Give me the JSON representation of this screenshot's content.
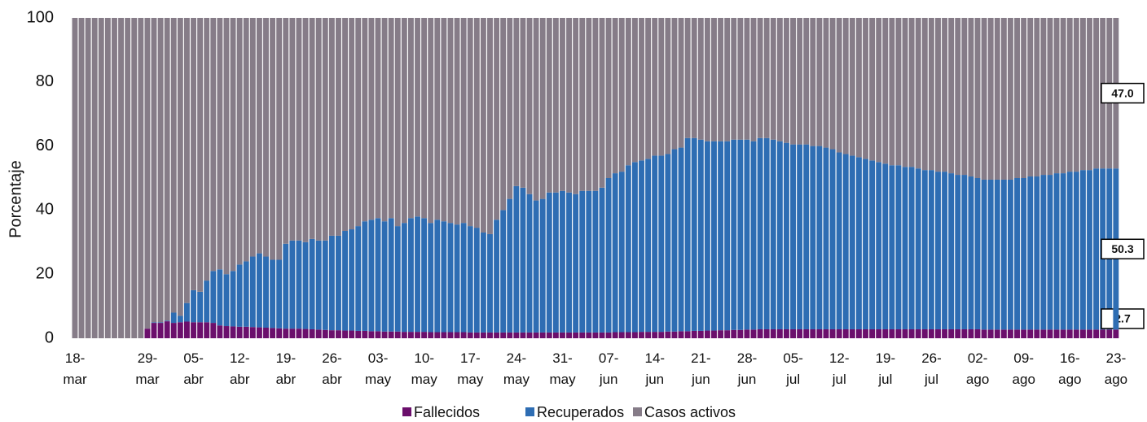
{
  "chart_data": {
    "type": "stacked_bar",
    "y_label": "Porcentaje",
    "ylim": [
      0,
      100
    ],
    "yticks": [
      0,
      20,
      40,
      60,
      80,
      100
    ],
    "legend": "bottom",
    "categories": [
      "18-mar",
      null,
      null,
      null,
      null,
      null,
      null,
      null,
      null,
      null,
      null,
      "29-mar",
      null,
      null,
      null,
      null,
      null,
      null,
      "05-abr",
      null,
      null,
      null,
      null,
      null,
      null,
      "12-abr",
      null,
      null,
      null,
      null,
      null,
      null,
      "19-abr",
      null,
      null,
      null,
      null,
      null,
      null,
      "26-abr",
      null,
      null,
      null,
      null,
      null,
      null,
      "03-may",
      null,
      null,
      null,
      null,
      null,
      null,
      "10-may",
      null,
      null,
      null,
      null,
      null,
      null,
      "17-may",
      null,
      null,
      null,
      null,
      null,
      null,
      "24-may",
      null,
      null,
      null,
      null,
      null,
      null,
      "31-may",
      null,
      null,
      null,
      null,
      null,
      null,
      "07-jun",
      null,
      null,
      null,
      null,
      null,
      null,
      "14-jun",
      null,
      null,
      null,
      null,
      null,
      null,
      "21-jun",
      null,
      null,
      null,
      null,
      null,
      null,
      "28-jun",
      null,
      null,
      null,
      null,
      null,
      null,
      "05-jul",
      null,
      null,
      null,
      null,
      null,
      null,
      "12-jul",
      null,
      null,
      null,
      null,
      null,
      null,
      "19-jul",
      null,
      null,
      null,
      null,
      null,
      null,
      "26-jul",
      null,
      null,
      null,
      null,
      null,
      null,
      "02-ago",
      null,
      null,
      null,
      null,
      null,
      null,
      "09-ago",
      null,
      null,
      null,
      null,
      null,
      null,
      "16-ago",
      null,
      null,
      null,
      null,
      null,
      null,
      "23-ago"
    ],
    "series": [
      {
        "name": "Fallecidos",
        "color": "#6b0f6c",
        "values": [
          0,
          0,
          0,
          0,
          0,
          0,
          0,
          0,
          0,
          0,
          0,
          3,
          4.8,
          4.8,
          5.3,
          4.8,
          5,
          5.2,
          5,
          5,
          5,
          4.8,
          4,
          3.8,
          3.7,
          3.6,
          3.6,
          3.5,
          3.4,
          3.3,
          3.2,
          3.1,
          3,
          3,
          3,
          2.9,
          2.8,
          2.7,
          2.6,
          2.5,
          2.5,
          2.4,
          2.4,
          2.3,
          2.3,
          2.2,
          2.2,
          2.1,
          2.1,
          2.1,
          2,
          2,
          2,
          2,
          1.9,
          1.9,
          1.9,
          1.9,
          1.9,
          1.9,
          1.8,
          1.8,
          1.8,
          1.8,
          1.8,
          1.8,
          1.8,
          1.8,
          1.8,
          1.8,
          1.8,
          1.8,
          1.8,
          1.8,
          1.8,
          1.8,
          1.8,
          1.8,
          1.8,
          1.8,
          1.8,
          1.8,
          1.9,
          1.9,
          1.9,
          1.9,
          2,
          2,
          2,
          2,
          2.1,
          2.1,
          2.2,
          2.2,
          2.3,
          2.3,
          2.4,
          2.4,
          2.5,
          2.5,
          2.6,
          2.6,
          2.7,
          2.7,
          2.8,
          2.8,
          2.8,
          2.8,
          2.8,
          2.8,
          2.8,
          2.8,
          2.8,
          2.8,
          2.8,
          2.8,
          2.8,
          2.8,
          2.8,
          2.8,
          2.8,
          2.8,
          2.8,
          2.8,
          2.8,
          2.8,
          2.8,
          2.8,
          2.8,
          2.8,
          2.8,
          2.8,
          2.8,
          2.8,
          2.8,
          2.8,
          2.8,
          2.8,
          2.7,
          2.7,
          2.7,
          2.7,
          2.7,
          2.7,
          2.7,
          2.7,
          2.7,
          2.7,
          2.7,
          2.7,
          2.7,
          2.7,
          2.7,
          2.7,
          2.7,
          2.7,
          2.7,
          2.7,
          2.7
        ],
        "value_labels": {
          "158": "2.7"
        }
      },
      {
        "name": "Recuperados",
        "color": "#2e6db3",
        "values": [
          0,
          0,
          0,
          0,
          0,
          0,
          0,
          0,
          0,
          0,
          0,
          0,
          0.2,
          0.2,
          0.2,
          3.2,
          2,
          5.8,
          10,
          9.5,
          13,
          16.2,
          17.5,
          16.2,
          17.3,
          19.4,
          20.4,
          22,
          23.1,
          22.2,
          21.3,
          21.4,
          26.5,
          27.5,
          27.5,
          27.1,
          28.2,
          27.8,
          27.9,
          29.5,
          29.5,
          31.1,
          31.6,
          32.7,
          34.2,
          34.8,
          35.3,
          34.4,
          35.4,
          32.9,
          34,
          35.5,
          36,
          35.5,
          34.1,
          35.1,
          34.6,
          34.1,
          33.6,
          34.1,
          33.2,
          32.7,
          31.2,
          30.7,
          35.2,
          38.2,
          41.7,
          45.7,
          45.2,
          43.2,
          41.2,
          41.7,
          43.7,
          43.7,
          44.2,
          43.7,
          43.2,
          44.2,
          44.2,
          44.2,
          45.2,
          48.2,
          49.6,
          50.1,
          52.1,
          53.1,
          53.5,
          54,
          55,
          55,
          55.4,
          56.9,
          57.3,
          60.3,
          60.2,
          59.7,
          59.1,
          59.1,
          59,
          59,
          59.4,
          59.4,
          59.3,
          58.8,
          59.7,
          59.7,
          59.2,
          58.7,
          58.2,
          57.7,
          57.7,
          57.7,
          57.2,
          57.2,
          56.7,
          56.2,
          55.2,
          54.7,
          54.2,
          53.7,
          53.2,
          52.7,
          52.2,
          51.7,
          51.2,
          51.2,
          50.7,
          50.7,
          50.2,
          49.7,
          49.7,
          49.2,
          49.2,
          48.7,
          48.2,
          48.2,
          47.7,
          47.2,
          46.8,
          46.8,
          46.8,
          46.8,
          46.8,
          47.3,
          47.3,
          47.8,
          47.8,
          48.3,
          48.3,
          48.8,
          48.8,
          49.3,
          49.3,
          49.8,
          49.8,
          50.3,
          50.3,
          50.3,
          50.3
        ],
        "value_labels": {
          "158": "50.3"
        }
      },
      {
        "name": "Casos activos",
        "color": "#867c88",
        "values": [
          100,
          100,
          100,
          100,
          100,
          100,
          100,
          100,
          100,
          100,
          100,
          97,
          95,
          95,
          94.5,
          92,
          93,
          89,
          85,
          85.5,
          82,
          79,
          78.5,
          80,
          79,
          77,
          76,
          74.5,
          73.5,
          74.5,
          75.5,
          75.5,
          70.5,
          69.5,
          69.5,
          70,
          69,
          69.5,
          69.5,
          68,
          68,
          66.5,
          66,
          65,
          63.5,
          63,
          62.5,
          63.5,
          62.5,
          65,
          64,
          62.5,
          62,
          62.5,
          64,
          63,
          63.5,
          64,
          64.5,
          64,
          65,
          65.5,
          67,
          67.5,
          63,
          60,
          56.5,
          52.5,
          53,
          55,
          57,
          56.5,
          54.5,
          54.5,
          54,
          54.5,
          55,
          54,
          54,
          54,
          53,
          50,
          48.5,
          48,
          46,
          45,
          44.5,
          44,
          43,
          43,
          42.5,
          41,
          40.5,
          37.5,
          37.5,
          38,
          38.5,
          38.5,
          38.5,
          38.5,
          38,
          38,
          38,
          38.5,
          37.5,
          37.5,
          38,
          38.5,
          39,
          39.5,
          39.5,
          39.5,
          40,
          40,
          40.5,
          41,
          42,
          42.5,
          43,
          43.5,
          44,
          44.5,
          45,
          45.5,
          46,
          46,
          46.5,
          46.5,
          47,
          47.5,
          47.5,
          48,
          48,
          48.5,
          49,
          49,
          49.5,
          50,
          50.5,
          50.5,
          50.5,
          50.5,
          50.5,
          50,
          50,
          49.5,
          49.5,
          49,
          49,
          48.5,
          48.5,
          48,
          48,
          47.5,
          47.5,
          47,
          47,
          47,
          47
        ],
        "value_labels": {
          "158": "47.0"
        }
      }
    ]
  }
}
